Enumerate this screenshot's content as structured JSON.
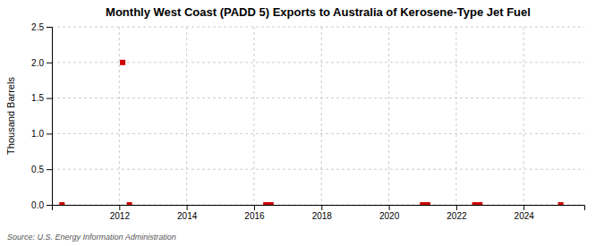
{
  "chart_data": {
    "type": "scatter",
    "title": "Monthly West Coast (PADD 5) Exports to Australia of Kerosene-Type Jet Fuel",
    "ylabel": "Thousand Barrels",
    "source": "Source: U.S. Energy Information Administration",
    "x": [
      2010.3,
      2012.1,
      2012.3,
      2016.35,
      2016.5,
      2021.0,
      2021.15,
      2022.55,
      2022.7,
      2025.1
    ],
    "values": [
      0.0,
      2.0,
      0.0,
      0.0,
      0.0,
      0.0,
      0.0,
      0.0,
      0.0,
      0.0
    ],
    "color": "#cc0000",
    "marker": "square",
    "xlim": [
      2010.0,
      2025.8
    ],
    "xticks": [
      2012,
      2014,
      2016,
      2018,
      2020,
      2022,
      2024
    ],
    "ylim": [
      0.0,
      2.5
    ],
    "yticks": [
      {
        "value": 0.0,
        "label": "0.0"
      },
      {
        "value": 0.5,
        "label": "0.5"
      },
      {
        "value": 1.0,
        "label": "1.0"
      },
      {
        "value": 1.5,
        "label": "1.5"
      },
      {
        "value": 2.0,
        "label": "2.0"
      },
      {
        "value": 2.5,
        "label": "2.5"
      }
    ],
    "grid": true
  }
}
